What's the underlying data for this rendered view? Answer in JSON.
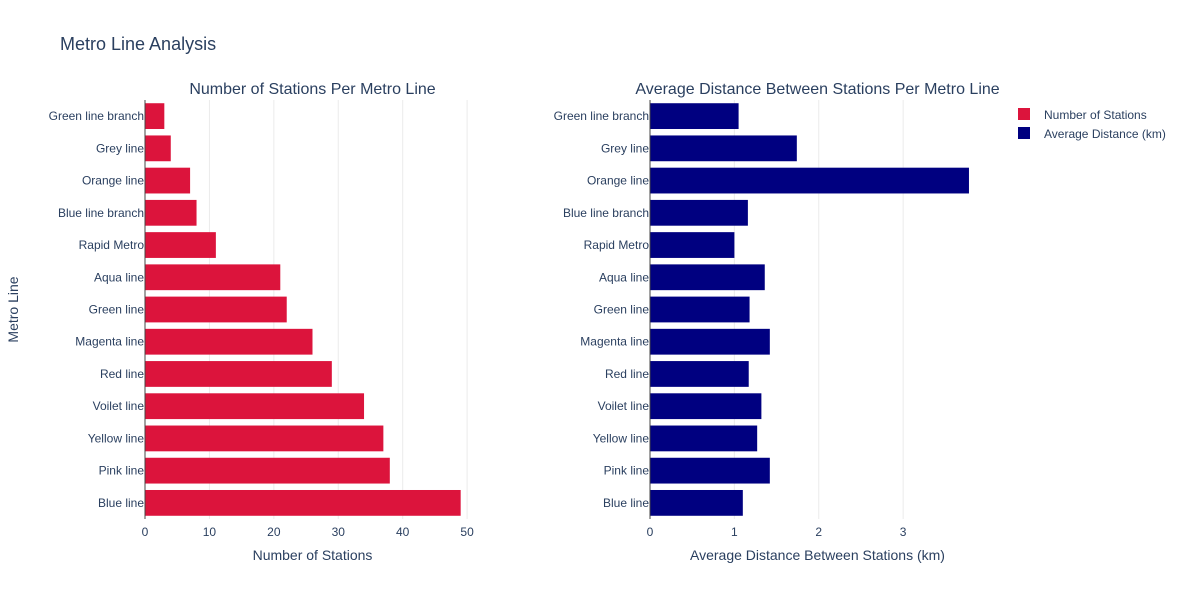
{
  "title": "Metro Line Analysis",
  "colors": {
    "stations": "#DC143C",
    "distance": "#000080"
  },
  "chart_data": [
    {
      "type": "bar",
      "orientation": "horizontal",
      "title": "Number of Stations Per Metro Line",
      "xlabel": "Number of Stations",
      "ylabel": "Metro Line",
      "xlim": [
        0,
        52
      ],
      "xticks": [
        0,
        10,
        20,
        30,
        40,
        50
      ],
      "categories": [
        "Blue line",
        "Pink line",
        "Yellow line",
        "Voilet line",
        "Red line",
        "Magenta line",
        "Green line",
        "Aqua line",
        "Rapid Metro",
        "Blue line branch",
        "Orange line",
        "Grey line",
        "Green line branch"
      ],
      "series": [
        {
          "name": "Number of Stations",
          "color": "#DC143C",
          "values": [
            49,
            38,
            37,
            34,
            29,
            26,
            22,
            21,
            11,
            8,
            7,
            4,
            3
          ]
        }
      ]
    },
    {
      "type": "bar",
      "orientation": "horizontal",
      "title": "Average Distance Between Stations Per Metro Line",
      "xlabel": "Average Distance Between Stations (km)",
      "ylabel": "",
      "xlim": [
        0,
        3.97
      ],
      "xticks": [
        0,
        1,
        2,
        3
      ],
      "categories": [
        "Blue line",
        "Pink line",
        "Yellow line",
        "Voilet line",
        "Red line",
        "Magenta line",
        "Green line",
        "Aqua line",
        "Rapid Metro",
        "Blue line branch",
        "Orange line",
        "Grey line",
        "Green line branch"
      ],
      "series": [
        {
          "name": "Average Distance (km)",
          "color": "#000080",
          "values": [
            1.1,
            1.42,
            1.27,
            1.32,
            1.17,
            1.42,
            1.18,
            1.36,
            1.0,
            1.16,
            3.78,
            1.74,
            1.05
          ]
        }
      ]
    }
  ],
  "legend": [
    {
      "label": "Number of Stations",
      "color": "#DC143C"
    },
    {
      "label": "Average Distance (km)",
      "color": "#000080"
    }
  ]
}
